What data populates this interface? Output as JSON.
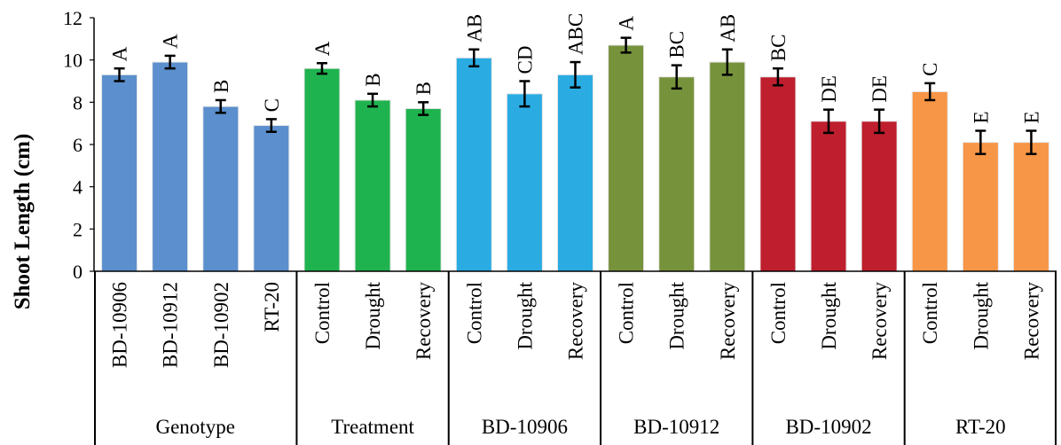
{
  "chart_data": {
    "type": "bar",
    "ylabel": "Shoot Length (cm)",
    "ylim": [
      0,
      12
    ],
    "yticks": [
      "0",
      "2",
      "4",
      "6",
      "8",
      "10",
      "12"
    ],
    "grid": false,
    "groups": [
      {
        "name": "Genotype",
        "color": "#5B8FCD",
        "bars": [
          {
            "label": "BD-10906",
            "value": 9.3,
            "error": 0.3,
            "letter": "A"
          },
          {
            "label": "BD-10912",
            "value": 9.9,
            "error": 0.3,
            "letter": "A"
          },
          {
            "label": "BD-10902",
            "value": 7.8,
            "error": 0.3,
            "letter": "B"
          },
          {
            "label": "RT-20",
            "value": 6.9,
            "error": 0.3,
            "letter": "C"
          }
        ]
      },
      {
        "name": "Treatment",
        "color": "#1FB34F",
        "bars": [
          {
            "label": "Control",
            "value": 9.6,
            "error": 0.25,
            "letter": "A"
          },
          {
            "label": "Drought",
            "value": 8.1,
            "error": 0.3,
            "letter": "B"
          },
          {
            "label": "Recovery",
            "value": 7.7,
            "error": 0.3,
            "letter": "B"
          }
        ]
      },
      {
        "name": "BD-10906",
        "color": "#2AACE3",
        "bars": [
          {
            "label": "Control",
            "value": 10.1,
            "error": 0.4,
            "letter": "AB"
          },
          {
            "label": "Drought",
            "value": 8.4,
            "error": 0.6,
            "letter": "CD"
          },
          {
            "label": "Recovery",
            "value": 9.3,
            "error": 0.6,
            "letter": "ABC"
          }
        ]
      },
      {
        "name": "BD-10912",
        "color": "#76933C",
        "bars": [
          {
            "label": "Control",
            "value": 10.7,
            "error": 0.35,
            "letter": "A"
          },
          {
            "label": "Drought",
            "value": 9.2,
            "error": 0.55,
            "letter": "BC"
          },
          {
            "label": "Recovery",
            "value": 9.9,
            "error": 0.6,
            "letter": "AB"
          }
        ]
      },
      {
        "name": "BD-10902",
        "color": "#BE1E2D",
        "bars": [
          {
            "label": "Control",
            "value": 9.2,
            "error": 0.4,
            "letter": "BC"
          },
          {
            "label": "Drought",
            "value": 7.1,
            "error": 0.55,
            "letter": "DE"
          },
          {
            "label": "Recovery",
            "value": 7.1,
            "error": 0.55,
            "letter": "DE"
          }
        ]
      },
      {
        "name": "RT-20",
        "color": "#F79646",
        "bars": [
          {
            "label": "Control",
            "value": 8.5,
            "error": 0.4,
            "letter": "C"
          },
          {
            "label": "Drought",
            "value": 6.1,
            "error": 0.55,
            "letter": "E"
          },
          {
            "label": "Recovery",
            "value": 6.1,
            "error": 0.55,
            "letter": "E"
          }
        ]
      }
    ]
  }
}
